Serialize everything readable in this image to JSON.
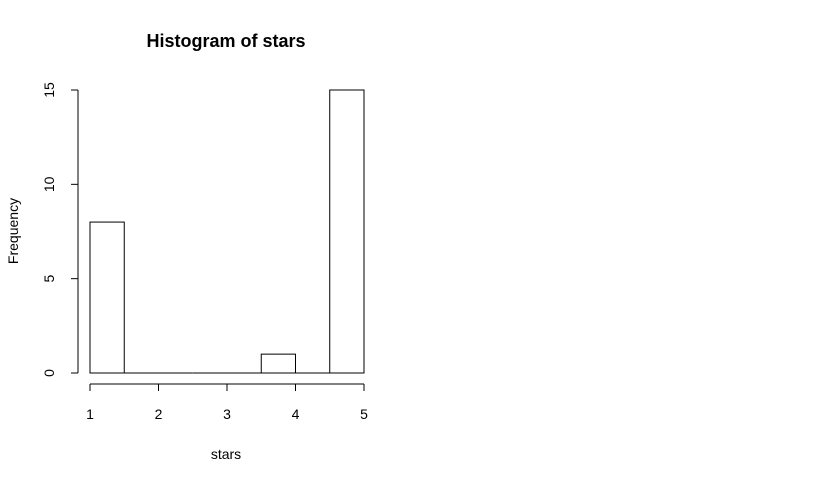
{
  "chart_data": {
    "type": "bar",
    "title": "Histogram of stars",
    "xlabel": "stars",
    "ylabel": "Frequency",
    "bins": [
      {
        "start": 1.0,
        "end": 1.5,
        "count": 8
      },
      {
        "start": 1.5,
        "end": 2.0,
        "count": 0
      },
      {
        "start": 2.0,
        "end": 2.5,
        "count": 0
      },
      {
        "start": 2.5,
        "end": 3.0,
        "count": 0
      },
      {
        "start": 3.0,
        "end": 3.5,
        "count": 0
      },
      {
        "start": 3.5,
        "end": 4.0,
        "count": 1
      },
      {
        "start": 4.0,
        "end": 4.5,
        "count": 0
      },
      {
        "start": 4.5,
        "end": 5.0,
        "count": 15
      }
    ],
    "xlim": [
      1,
      5
    ],
    "ylim": [
      0,
      15
    ],
    "x_ticks": [
      "1",
      "2",
      "3",
      "4",
      "5"
    ],
    "y_ticks": [
      "0",
      "5",
      "10",
      "15"
    ],
    "grid": false,
    "bar_fill": "#ffffff",
    "bar_stroke": "#000000"
  }
}
